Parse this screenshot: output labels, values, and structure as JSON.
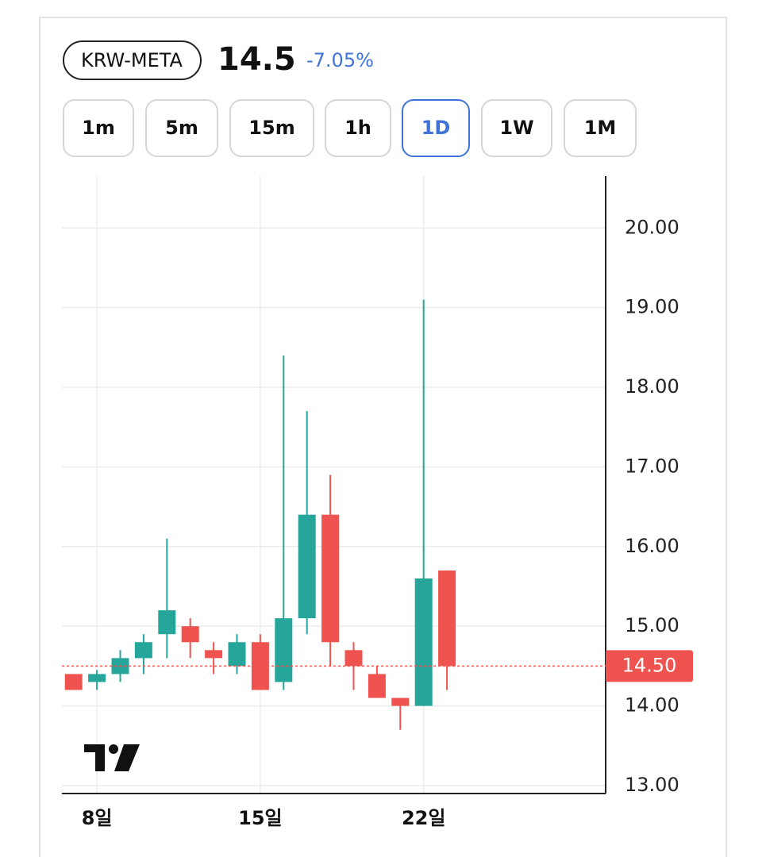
{
  "header": {
    "symbol": "KRW-META",
    "price": "14.5",
    "change": "-7.05%"
  },
  "intervals": {
    "labels": [
      "1m",
      "5m",
      "15m",
      "1h",
      "1D",
      "1W",
      "1M"
    ],
    "selected": 4
  },
  "chart_data": {
    "type": "candlestick",
    "x": [
      7,
      8,
      9,
      10,
      11,
      12,
      13,
      14,
      15,
      16,
      17,
      18,
      19,
      20,
      21,
      22,
      23
    ],
    "open": [
      14.4,
      14.3,
      14.4,
      14.6,
      14.9,
      15.0,
      14.7,
      14.5,
      14.8,
      14.3,
      15.1,
      16.4,
      14.7,
      14.4,
      14.1,
      14.0,
      15.7
    ],
    "high": [
      14.4,
      14.45,
      14.7,
      14.9,
      16.1,
      15.1,
      14.8,
      14.9,
      14.9,
      18.4,
      17.7,
      16.9,
      14.8,
      14.5,
      14.1,
      19.1,
      15.7
    ],
    "low": [
      14.2,
      14.2,
      14.3,
      14.4,
      14.6,
      14.6,
      14.4,
      14.4,
      14.2,
      14.2,
      14.9,
      14.5,
      14.2,
      14.1,
      13.7,
      14.0,
      14.2
    ],
    "close": [
      14.2,
      14.4,
      14.6,
      14.8,
      15.2,
      14.8,
      14.6,
      14.8,
      14.2,
      15.1,
      16.4,
      14.8,
      14.5,
      14.1,
      14.0,
      15.6,
      14.5
    ],
    "up_color": "#26a69a",
    "down_color": "#ef5350",
    "xlim": [
      6.5,
      29.8
    ],
    "xticks": [
      {
        "value": 8,
        "label": "8일"
      },
      {
        "value": 15,
        "label": "15일"
      },
      {
        "value": 22,
        "label": "22일"
      }
    ],
    "ylim": [
      12.9,
      20.65
    ],
    "yticks": [
      {
        "value": 13,
        "label": "13.00"
      },
      {
        "value": 14,
        "label": "14.00"
      },
      {
        "value": 15,
        "label": "15.00"
      },
      {
        "value": 16,
        "label": "16.00"
      },
      {
        "value": 17,
        "label": "17.00"
      },
      {
        "value": 18,
        "label": "18.00"
      },
      {
        "value": 19,
        "label": "19.00"
      },
      {
        "value": 20,
        "label": "20.00"
      }
    ],
    "grid": true,
    "last": {
      "value": 14.5,
      "label": "14.50"
    }
  }
}
